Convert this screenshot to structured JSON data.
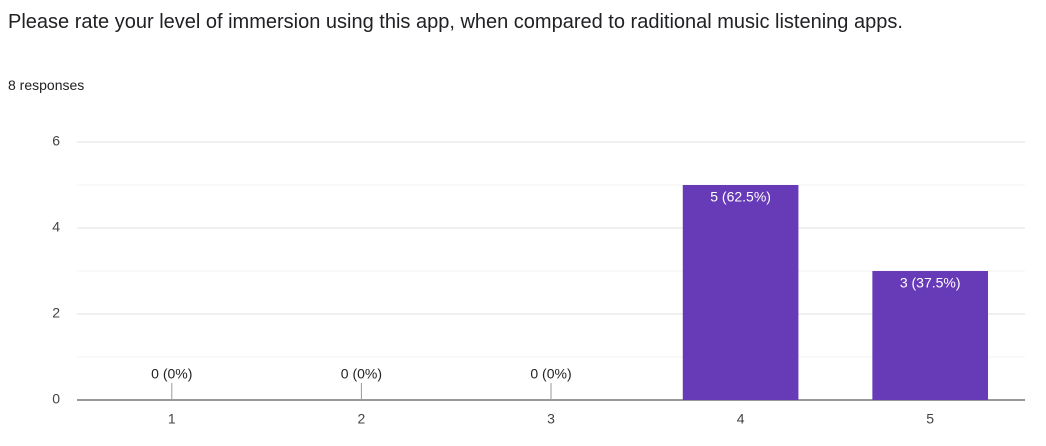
{
  "chart_data": {
    "type": "bar",
    "title": "Please rate your level of immersion using this app, when compared to raditional music listening apps.",
    "subtitle": "8 responses",
    "categories": [
      "1",
      "2",
      "3",
      "4",
      "5"
    ],
    "values": [
      0,
      0,
      0,
      5,
      3
    ],
    "value_labels": [
      "0 (0%)",
      "0 (0%)",
      "0 (0%)",
      "5 (62.5%)",
      "3 (37.5%)"
    ],
    "color": "#673ab7",
    "ylim": [
      0,
      6
    ],
    "yticks": [
      0,
      2,
      4,
      6
    ],
    "minor_yticks": [
      1,
      3,
      5
    ],
    "grid": true
  }
}
